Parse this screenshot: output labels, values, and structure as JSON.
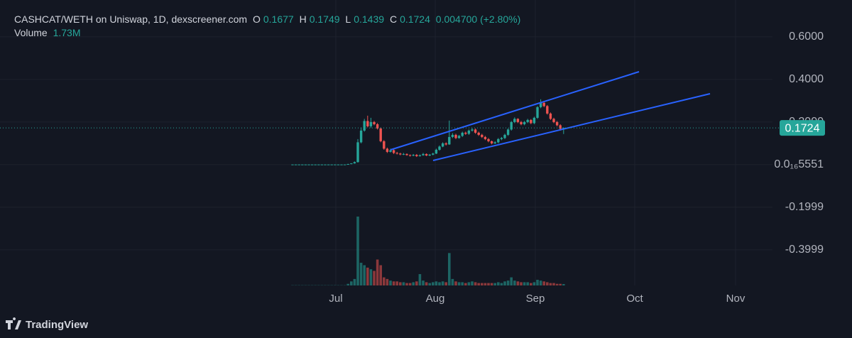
{
  "chart_data": {
    "type": "candlestick",
    "header": {
      "title": "CASHCAT/WETH on Uniswap, 1D, dexscreener.com",
      "open_label": "O",
      "high_label": "H",
      "low_label": "L",
      "close_label": "C",
      "change": "0.004700 (+2.80%)",
      "volume_title": "Volume",
      "volume_readout": "1.73M"
    },
    "xticks": [
      "Jul",
      "Aug",
      "Sep",
      "Oct",
      "Nov"
    ],
    "ylim": [
      -0.567,
      0.773
    ],
    "yticks": [
      {
        "value": 0.6,
        "label": "0.6000"
      },
      {
        "value": 0.4,
        "label": "0.4000"
      },
      {
        "value": 0.2,
        "label": "0.2000"
      },
      {
        "value": 0,
        "label": "0.0₁₆5551"
      },
      -0.1999,
      -0.3999
    ],
    "grid": true,
    "up_color": "#26a69a",
    "down_color": "#ef5350",
    "series": [
      {
        "name": "CASHCAT/WETH",
        "open": [
          0.001,
          0.001,
          0.001,
          0.001,
          0.001,
          0.001,
          0.001,
          0.001,
          0.001,
          0.001,
          0.001,
          0.001,
          0.001,
          0.001,
          0.001,
          0.001,
          0.001,
          0.001,
          0.003,
          0.006,
          0.012,
          0.105,
          0.16,
          0.205,
          0.18,
          0.2,
          0.19,
          0.17,
          0.11,
          0.075,
          0.06,
          0.068,
          0.055,
          0.052,
          0.048,
          0.05,
          0.045,
          0.042,
          0.046,
          0.04,
          0.044,
          0.05,
          0.043,
          0.047,
          0.052,
          0.07,
          0.085,
          0.1,
          0.095,
          0.13,
          0.14,
          0.125,
          0.135,
          0.15,
          0.145,
          0.16,
          0.165,
          0.15,
          0.14,
          0.13,
          0.12,
          0.11,
          0.1,
          0.105,
          0.12,
          0.125,
          0.14,
          0.165,
          0.2,
          0.215,
          0.2,
          0.19,
          0.2,
          0.21,
          0.195,
          0.22,
          0.27,
          0.29,
          0.275,
          0.24,
          0.215,
          0.2,
          0.185,
          0.1677
        ],
        "high": [
          0.001,
          0.001,
          0.001,
          0.001,
          0.001,
          0.001,
          0.001,
          0.001,
          0.001,
          0.001,
          0.001,
          0.001,
          0.001,
          0.001,
          0.001,
          0.001,
          0.001,
          0.004,
          0.007,
          0.015,
          0.12,
          0.175,
          0.215,
          0.23,
          0.22,
          0.205,
          0.195,
          0.175,
          0.115,
          0.08,
          0.075,
          0.072,
          0.06,
          0.056,
          0.055,
          0.053,
          0.048,
          0.05,
          0.05,
          0.048,
          0.055,
          0.053,
          0.05,
          0.056,
          0.075,
          0.09,
          0.105,
          0.105,
          0.207,
          0.148,
          0.145,
          0.14,
          0.155,
          0.155,
          0.165,
          0.172,
          0.17,
          0.155,
          0.145,
          0.135,
          0.125,
          0.113,
          0.11,
          0.125,
          0.13,
          0.145,
          0.17,
          0.205,
          0.222,
          0.218,
          0.205,
          0.205,
          0.215,
          0.214,
          0.225,
          0.275,
          0.307,
          0.295,
          0.28,
          0.245,
          0.22,
          0.205,
          0.19,
          0.1749
        ],
        "low": [
          0.001,
          0.001,
          0.001,
          0.001,
          0.001,
          0.001,
          0.001,
          0.001,
          0.001,
          0.001,
          0.001,
          0.001,
          0.001,
          0.001,
          0.001,
          0.001,
          0.001,
          0.001,
          0.002,
          0.005,
          0.01,
          0.1,
          0.155,
          0.175,
          0.172,
          0.185,
          0.165,
          0.105,
          0.07,
          0.055,
          0.057,
          0.05,
          0.048,
          0.044,
          0.045,
          0.042,
          0.038,
          0.04,
          0.036,
          0.038,
          0.042,
          0.04,
          0.04,
          0.044,
          0.05,
          0.066,
          0.082,
          0.09,
          0.093,
          0.125,
          0.12,
          0.122,
          0.13,
          0.14,
          0.14,
          0.155,
          0.145,
          0.135,
          0.125,
          0.115,
          0.105,
          0.095,
          0.097,
          0.1,
          0.115,
          0.12,
          0.135,
          0.16,
          0.195,
          0.195,
          0.185,
          0.185,
          0.195,
          0.19,
          0.19,
          0.215,
          0.265,
          0.27,
          0.235,
          0.21,
          0.195,
          0.18,
          0.16,
          0.1439
        ],
        "close": [
          0.001,
          0.001,
          0.001,
          0.001,
          0.001,
          0.001,
          0.001,
          0.001,
          0.001,
          0.001,
          0.001,
          0.001,
          0.001,
          0.001,
          0.001,
          0.001,
          0.001,
          0.003,
          0.006,
          0.012,
          0.105,
          0.16,
          0.205,
          0.18,
          0.2,
          0.19,
          0.17,
          0.11,
          0.075,
          0.06,
          0.068,
          0.055,
          0.052,
          0.048,
          0.05,
          0.045,
          0.042,
          0.046,
          0.04,
          0.044,
          0.05,
          0.043,
          0.047,
          0.052,
          0.07,
          0.085,
          0.1,
          0.095,
          0.13,
          0.14,
          0.125,
          0.135,
          0.15,
          0.145,
          0.16,
          0.165,
          0.15,
          0.14,
          0.13,
          0.12,
          0.11,
          0.1,
          0.105,
          0.12,
          0.125,
          0.14,
          0.165,
          0.2,
          0.215,
          0.2,
          0.19,
          0.2,
          0.21,
          0.195,
          0.22,
          0.27,
          0.29,
          0.275,
          0.24,
          0.215,
          0.2,
          0.185,
          0.1677,
          0.1724
        ],
        "volume": [
          0.3,
          0.3,
          0.3,
          0.3,
          0.3,
          0.3,
          0.3,
          0.3,
          0.3,
          0.3,
          0.3,
          0.3,
          0.3,
          0.3,
          0.3,
          0.3,
          0.3,
          2,
          5,
          8,
          85,
          28,
          25,
          22,
          20,
          18,
          32,
          25,
          10,
          8,
          6,
          5,
          5,
          4,
          4,
          3,
          3,
          4,
          5,
          14,
          6,
          4,
          3,
          4,
          5,
          4,
          5,
          4,
          40,
          8,
          5,
          4,
          4,
          3,
          4,
          5,
          4,
          3,
          3,
          3,
          3,
          3,
          3,
          4,
          3,
          5,
          6,
          10,
          6,
          5,
          4,
          4,
          4,
          3,
          4,
          7,
          6,
          5,
          4,
          3,
          3,
          2,
          2,
          1.73
        ]
      }
    ]
  }
}
